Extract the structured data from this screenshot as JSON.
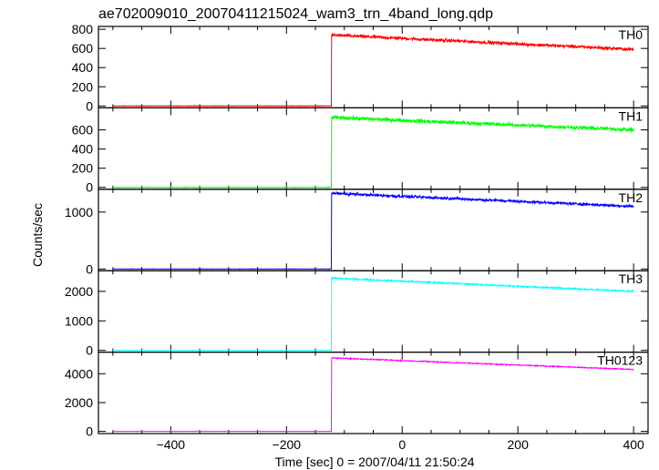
{
  "title": "ae702009010_20070411215024_wam3_trn_4band_long.qdp",
  "xlabel": "Time [sec] 0 = 2007/04/11 21:50:24",
  "ylabel": "Counts/sec",
  "chart_data": {
    "type": "line",
    "title": "ae702009010_20070411215024_wam3_trn_4band_long.qdp",
    "xlabel": "Time [sec] 0 = 2007/04/11 21:50:24",
    "ylabel": "Counts/sec",
    "xlim": [
      -525,
      425
    ],
    "xticks": [
      -400,
      -200,
      0,
      200,
      400
    ],
    "x_labels": [
      "−400",
      "−200",
      "0",
      "200",
      "400"
    ],
    "x_data_range": [
      -500,
      400
    ],
    "trigger_time": -122,
    "grid": false,
    "panels": [
      {
        "name": "TH0",
        "color": "#ff0000",
        "ylim": [
          -20,
          830
        ],
        "yticks": [
          0,
          200,
          400,
          600,
          800
        ],
        "y_labels": [
          "0",
          "200",
          "400",
          "600",
          "800"
        ],
        "pre_level": 0,
        "peak": 740,
        "end": 590,
        "noise": 25
      },
      {
        "name": "TH1",
        "color": "#00ff00",
        "ylim": [
          -20,
          830
        ],
        "yticks": [
          0,
          200,
          400,
          600
        ],
        "y_labels": [
          "0",
          "200",
          "400",
          "600"
        ],
        "pre_level": 0,
        "peak": 730,
        "end": 600,
        "noise": 30
      },
      {
        "name": "TH2",
        "color": "#0000ff",
        "ylim": [
          -30,
          1400
        ],
        "yticks": [
          0,
          1000
        ],
        "y_labels": [
          "0",
          "1000"
        ],
        "pre_level": 0,
        "peak": 1330,
        "end": 1100,
        "noise": 35
      },
      {
        "name": "TH3",
        "color": "#00ffff",
        "ylim": [
          -60,
          2700
        ],
        "yticks": [
          0,
          1000,
          2000
        ],
        "y_labels": [
          "0",
          "1000",
          "2000"
        ],
        "pre_level": 0,
        "peak": 2450,
        "end": 2000,
        "noise": 40
      },
      {
        "name": "TH0123",
        "color": "#ff00ff",
        "ylim": [
          -150,
          5500
        ],
        "yticks": [
          0,
          2000,
          4000
        ],
        "y_labels": [
          "0",
          "2000",
          "4000"
        ],
        "pre_level": 0,
        "peak": 5100,
        "end": 4300,
        "noise": 55
      }
    ]
  }
}
